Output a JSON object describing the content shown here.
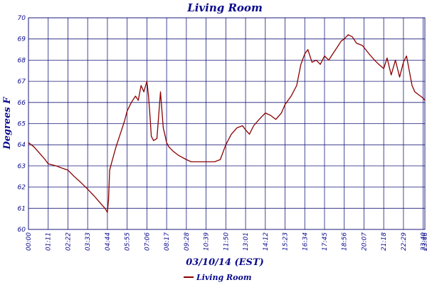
{
  "chart_data": {
    "type": "line",
    "title": "Living Room",
    "xlabel": "03/10/14 (EST)",
    "ylabel": "Degrees F",
    "ylim": [
      60,
      70
    ],
    "yticks": [
      "60",
      "61",
      "62",
      "63",
      "64",
      "65",
      "66",
      "67",
      "68",
      "69",
      "70"
    ],
    "xticks": [
      "00:00",
      "01:11",
      "02:22",
      "03:33",
      "04:44",
      "05:55",
      "07:06",
      "08:17",
      "09:28",
      "10:39",
      "11:50",
      "13:01",
      "14:12",
      "15:23",
      "16:34",
      "17:45",
      "18:56",
      "20:07",
      "21:18",
      "22:29",
      "23:40",
      "23:46"
    ],
    "grid": true,
    "legend": "bottom-center",
    "colors": {
      "series": "#8b0000",
      "grid": "#1a1a7a",
      "text": "#0a0a8c"
    },
    "series": [
      {
        "name": "Living Room",
        "x": [
          "00:00",
          "00:20",
          "00:40",
          "01:00",
          "01:11",
          "01:40",
          "02:00",
          "02:22",
          "02:45",
          "03:10",
          "03:33",
          "03:55",
          "04:15",
          "04:35",
          "04:40",
          "04:44",
          "04:48",
          "04:52",
          "05:00",
          "05:15",
          "05:30",
          "05:45",
          "05:55",
          "06:10",
          "06:25",
          "06:35",
          "06:45",
          "06:55",
          "07:06",
          "07:12",
          "07:18",
          "07:22",
          "07:30",
          "07:42",
          "07:55",
          "08:05",
          "08:12",
          "08:17",
          "08:25",
          "08:40",
          "09:00",
          "09:28",
          "09:45",
          "10:10",
          "10:39",
          "11:10",
          "11:30",
          "11:50",
          "12:10",
          "12:30",
          "12:50",
          "13:01",
          "13:15",
          "13:30",
          "13:50",
          "14:12",
          "14:30",
          "14:50",
          "15:10",
          "15:23",
          "15:45",
          "16:05",
          "16:20",
          "16:34",
          "16:45",
          "17:00",
          "17:15",
          "17:30",
          "17:45",
          "18:00",
          "18:15",
          "18:30",
          "18:45",
          "18:56",
          "19:10",
          "19:25",
          "19:40",
          "20:00",
          "20:07",
          "20:25",
          "20:45",
          "21:00",
          "21:18",
          "21:30",
          "21:45",
          "22:00",
          "22:15",
          "22:29",
          "22:40",
          "22:50",
          "23:00",
          "23:10",
          "23:20",
          "23:30",
          "23:40",
          "23:46"
        ],
        "y": [
          64.1,
          63.9,
          63.6,
          63.3,
          63.1,
          63.0,
          62.9,
          62.8,
          62.5,
          62.2,
          61.9,
          61.6,
          61.3,
          61.0,
          60.9,
          60.8,
          61.4,
          62.8,
          63.2,
          63.9,
          64.5,
          65.1,
          65.6,
          66.0,
          66.3,
          66.1,
          66.8,
          66.5,
          67.0,
          66.3,
          65.2,
          64.4,
          64.2,
          64.3,
          66.5,
          64.8,
          64.4,
          64.1,
          63.9,
          63.7,
          63.5,
          63.3,
          63.2,
          63.2,
          63.2,
          63.2,
          63.3,
          64.0,
          64.5,
          64.8,
          64.9,
          64.7,
          64.5,
          64.9,
          65.2,
          65.5,
          65.4,
          65.2,
          65.5,
          65.9,
          66.3,
          66.8,
          67.8,
          68.3,
          68.5,
          67.9,
          68.0,
          67.8,
          68.2,
          68.0,
          68.3,
          68.6,
          68.9,
          69.0,
          69.2,
          69.1,
          68.8,
          68.7,
          68.6,
          68.3,
          68.0,
          67.8,
          67.6,
          68.1,
          67.3,
          68.0,
          67.2,
          67.9,
          68.2,
          67.5,
          66.8,
          66.5,
          66.4,
          66.3,
          66.2,
          66.1
        ]
      }
    ]
  }
}
